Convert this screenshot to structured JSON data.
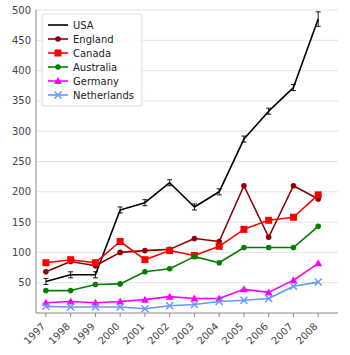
{
  "chart_data": {
    "type": "line",
    "x": [
      1997,
      1998,
      1999,
      2000,
      2001,
      2002,
      2003,
      2004,
      2005,
      2006,
      2007,
      2008
    ],
    "series": [
      {
        "name": "USA",
        "color": "#000000",
        "marker": "none",
        "values": [
          52,
          63,
          63,
          170,
          182,
          215,
          175,
          200,
          287,
          333,
          372,
          485
        ],
        "error_low": [
          5,
          5,
          5,
          5,
          5,
          5,
          5,
          5,
          5,
          5,
          5,
          12
        ],
        "error_high": [
          5,
          5,
          5,
          5,
          5,
          5,
          5,
          5,
          5,
          5,
          5,
          12
        ]
      },
      {
        "name": "England",
        "color": "#8b0000",
        "marker": "circle",
        "values": [
          68,
          85,
          78,
          100,
          103,
          105,
          123,
          118,
          210,
          125,
          210,
          188
        ]
      },
      {
        "name": "Canada",
        "color": "#ff0000",
        "marker": "square",
        "values": [
          83,
          88,
          83,
          118,
          88,
          103,
          95,
          110,
          138,
          153,
          158,
          195
        ]
      },
      {
        "name": "Australia",
        "color": "#008000",
        "marker": "circle",
        "values": [
          37,
          37,
          47,
          48,
          68,
          73,
          93,
          83,
          108,
          108,
          108,
          143
        ]
      },
      {
        "name": "Germany",
        "color": "#ff00ff",
        "marker": "triangle",
        "values": [
          17,
          19,
          17,
          19,
          22,
          27,
          24,
          24,
          39,
          34,
          54,
          82
        ]
      },
      {
        "name": "Netherlands",
        "color": "#6699ff",
        "marker": "x",
        "values": [
          11,
          10,
          10,
          10,
          7,
          12,
          14,
          19,
          21,
          24,
          44,
          51
        ]
      }
    ],
    "xlim": [
      1996.6,
      2008.8
    ],
    "xticks": [
      1997,
      1998,
      1999,
      2000,
      2001,
      2002,
      2003,
      2004,
      2005,
      2006,
      2007,
      2008
    ],
    "ylim": [
      0,
      500
    ],
    "yticks": [
      50,
      100,
      150,
      200,
      250,
      300,
      350,
      400,
      450,
      500
    ],
    "grid": "y",
    "legend": "upper left"
  }
}
